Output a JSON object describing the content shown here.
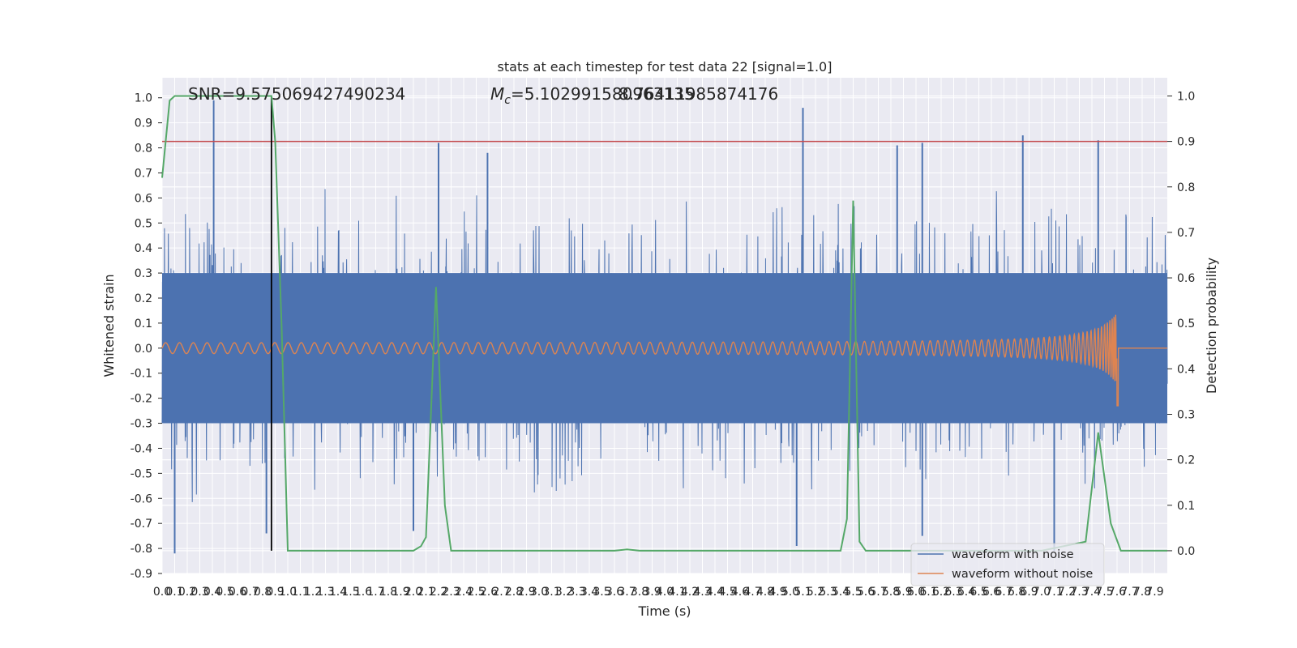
{
  "chart_data": {
    "type": "line",
    "title": "stats at each timestep for test data 22 [signal=1.0]",
    "xlabel": "Time (s)",
    "ylabel": "Whitened strain",
    "y2label": "Detection probability",
    "xlim": [
      0.0,
      8.0
    ],
    "ylim": [
      -0.9,
      1.08
    ],
    "y2lim": [
      -0.05,
      1.04
    ],
    "xticks": [
      0.0,
      0.1,
      0.2,
      0.3,
      0.4,
      0.5,
      0.6,
      0.7,
      0.8,
      0.9,
      1.0,
      1.1,
      1.2,
      1.3,
      1.4,
      1.5,
      1.6,
      1.7,
      1.8,
      1.9,
      2.0,
      2.1,
      2.2,
      2.3,
      2.4,
      2.5,
      2.6,
      2.7,
      2.8,
      2.9,
      3.0,
      3.1,
      3.2,
      3.3,
      3.4,
      3.5,
      3.6,
      3.7,
      3.8,
      3.9,
      4.0,
      4.1,
      4.2,
      4.3,
      4.4,
      4.5,
      4.6,
      4.7,
      4.8,
      4.9,
      5.0,
      5.1,
      5.2,
      5.3,
      5.4,
      5.5,
      5.6,
      5.7,
      5.8,
      5.9,
      6.0,
      6.1,
      6.2,
      6.3,
      6.4,
      6.5,
      6.6,
      6.7,
      6.8,
      6.9,
      7.0,
      7.1,
      7.2,
      7.3,
      7.4,
      7.5,
      7.6,
      7.7,
      7.8,
      7.9
    ],
    "yticks": [
      1.0,
      0.9,
      0.8,
      0.7,
      0.6,
      0.5,
      0.4,
      0.3,
      0.2,
      0.1,
      0.0,
      -0.1,
      -0.2,
      -0.3,
      -0.4,
      -0.5,
      -0.6,
      -0.7,
      -0.8,
      -0.9
    ],
    "y2ticks": [
      1.0,
      0.9,
      0.8,
      0.7,
      0.6,
      0.5,
      0.4,
      0.3,
      0.2,
      0.1,
      0.0
    ],
    "legend": [
      "waveform with noise",
      "waveform without noise"
    ],
    "legend_position": "lower-right",
    "annotations": {
      "snr": "SNR=9.575069427490234",
      "mc": "M_c=5.102991580963135",
      "overlap": "8.76411985874176"
    },
    "threshold_y2": 0.9,
    "marker_x": 0.87,
    "noise": {
      "name": "waveform with noise",
      "color": "#4c72b0",
      "core_amplitude": 0.3,
      "spike_peaks": [
        {
          "x": 0.41,
          "y": 0.99
        },
        {
          "x": 2.2,
          "y": 0.82
        },
        {
          "x": 2.59,
          "y": 0.78
        },
        {
          "x": 5.1,
          "y": 0.96
        },
        {
          "x": 5.85,
          "y": 0.81
        },
        {
          "x": 6.05,
          "y": 0.82
        },
        {
          "x": 6.85,
          "y": 0.85
        },
        {
          "x": 7.45,
          "y": 0.83
        },
        {
          "x": 0.1,
          "y": -0.82
        },
        {
          "x": 0.83,
          "y": -0.74
        },
        {
          "x": 2.0,
          "y": -0.73
        },
        {
          "x": 5.05,
          "y": -0.79
        },
        {
          "x": 6.05,
          "y": -0.75
        },
        {
          "x": 7.1,
          "y": -0.81
        }
      ]
    },
    "clean": {
      "name": "waveform without noise",
      "color": "#dd8452",
      "start_amplitude": 0.02,
      "peak_amplitude": 0.15,
      "merger_time": 7.6,
      "trough": -0.23
    },
    "probability": {
      "name": "Detection probability",
      "color": "#55a868",
      "x": [
        0.0,
        0.06,
        0.1,
        0.2,
        0.3,
        0.4,
        0.5,
        0.6,
        0.7,
        0.8,
        0.87,
        0.9,
        0.95,
        1.0,
        1.5,
        2.0,
        2.06,
        2.1,
        2.18,
        2.25,
        2.3,
        2.35,
        3.0,
        3.6,
        3.7,
        3.8,
        4.5,
        5.4,
        5.45,
        5.5,
        5.55,
        5.6,
        6.0,
        7.0,
        7.35,
        7.45,
        7.55,
        7.63,
        7.95,
        8.0
      ],
      "y": [
        0.82,
        0.99,
        1.0,
        1.0,
        1.0,
        1.0,
        1.0,
        1.0,
        1.0,
        1.0,
        1.0,
        0.9,
        0.5,
        0.0,
        0.0,
        0.0,
        0.01,
        0.03,
        0.58,
        0.1,
        0.0,
        0.0,
        0.0,
        0.0,
        0.003,
        0.0,
        0.0,
        0.0,
        0.07,
        0.77,
        0.02,
        0.0,
        0.0,
        0.0,
        0.02,
        0.26,
        0.06,
        0.0,
        0.0,
        0.0
      ]
    }
  }
}
